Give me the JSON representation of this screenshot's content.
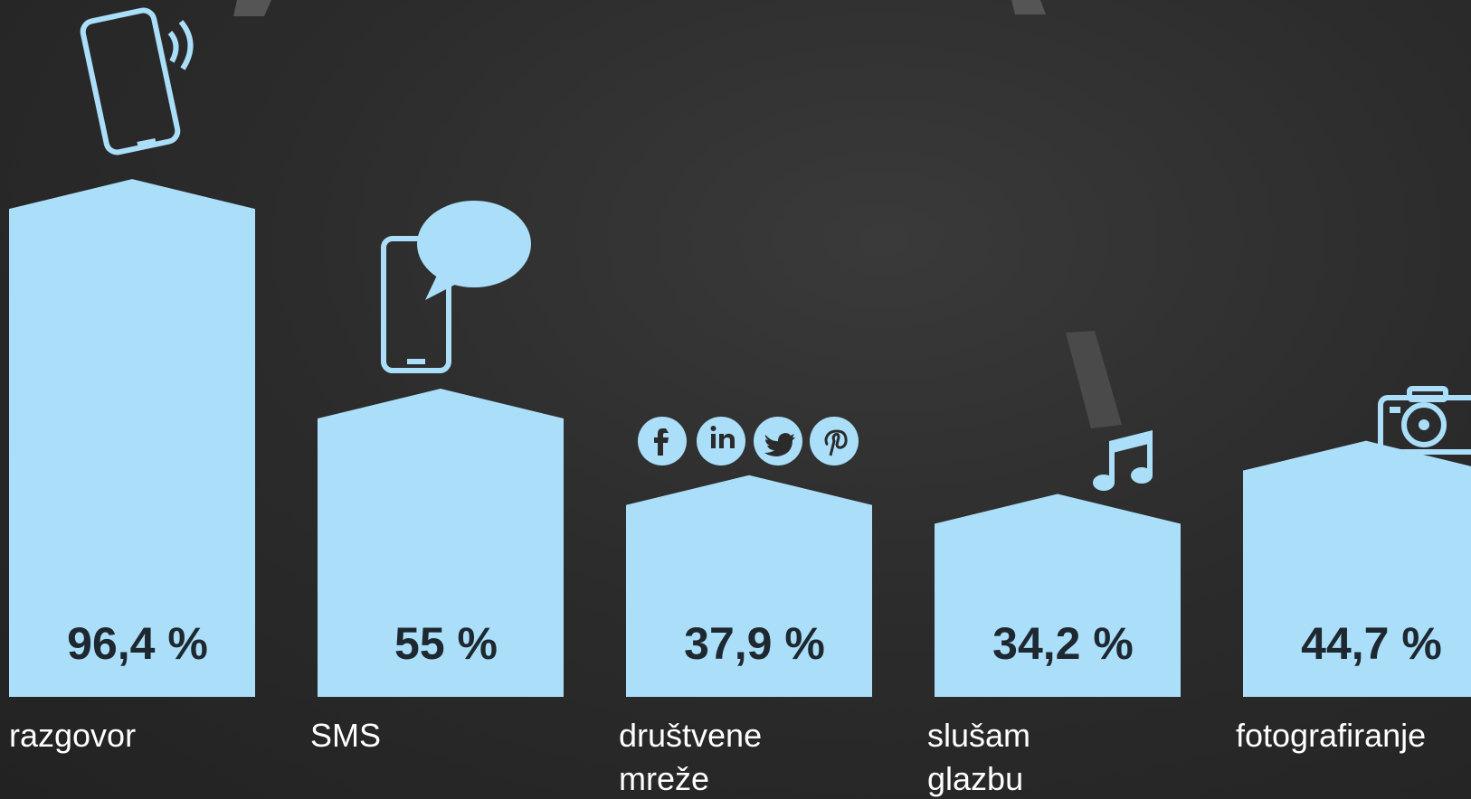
{
  "chart_data": {
    "type": "bar",
    "categories": [
      "razgovor",
      "SMS",
      "društvene mreže",
      "slušam glazbu",
      "fotografiranje"
    ],
    "values": [
      96.4,
      55,
      37.9,
      34.2,
      44.7
    ],
    "value_labels": [
      "96,4 %",
      "55 %",
      "37,9 %",
      "34,2 %",
      "44,7 %"
    ],
    "color": "#abdff9",
    "ylim": [
      0,
      100
    ]
  }
}
